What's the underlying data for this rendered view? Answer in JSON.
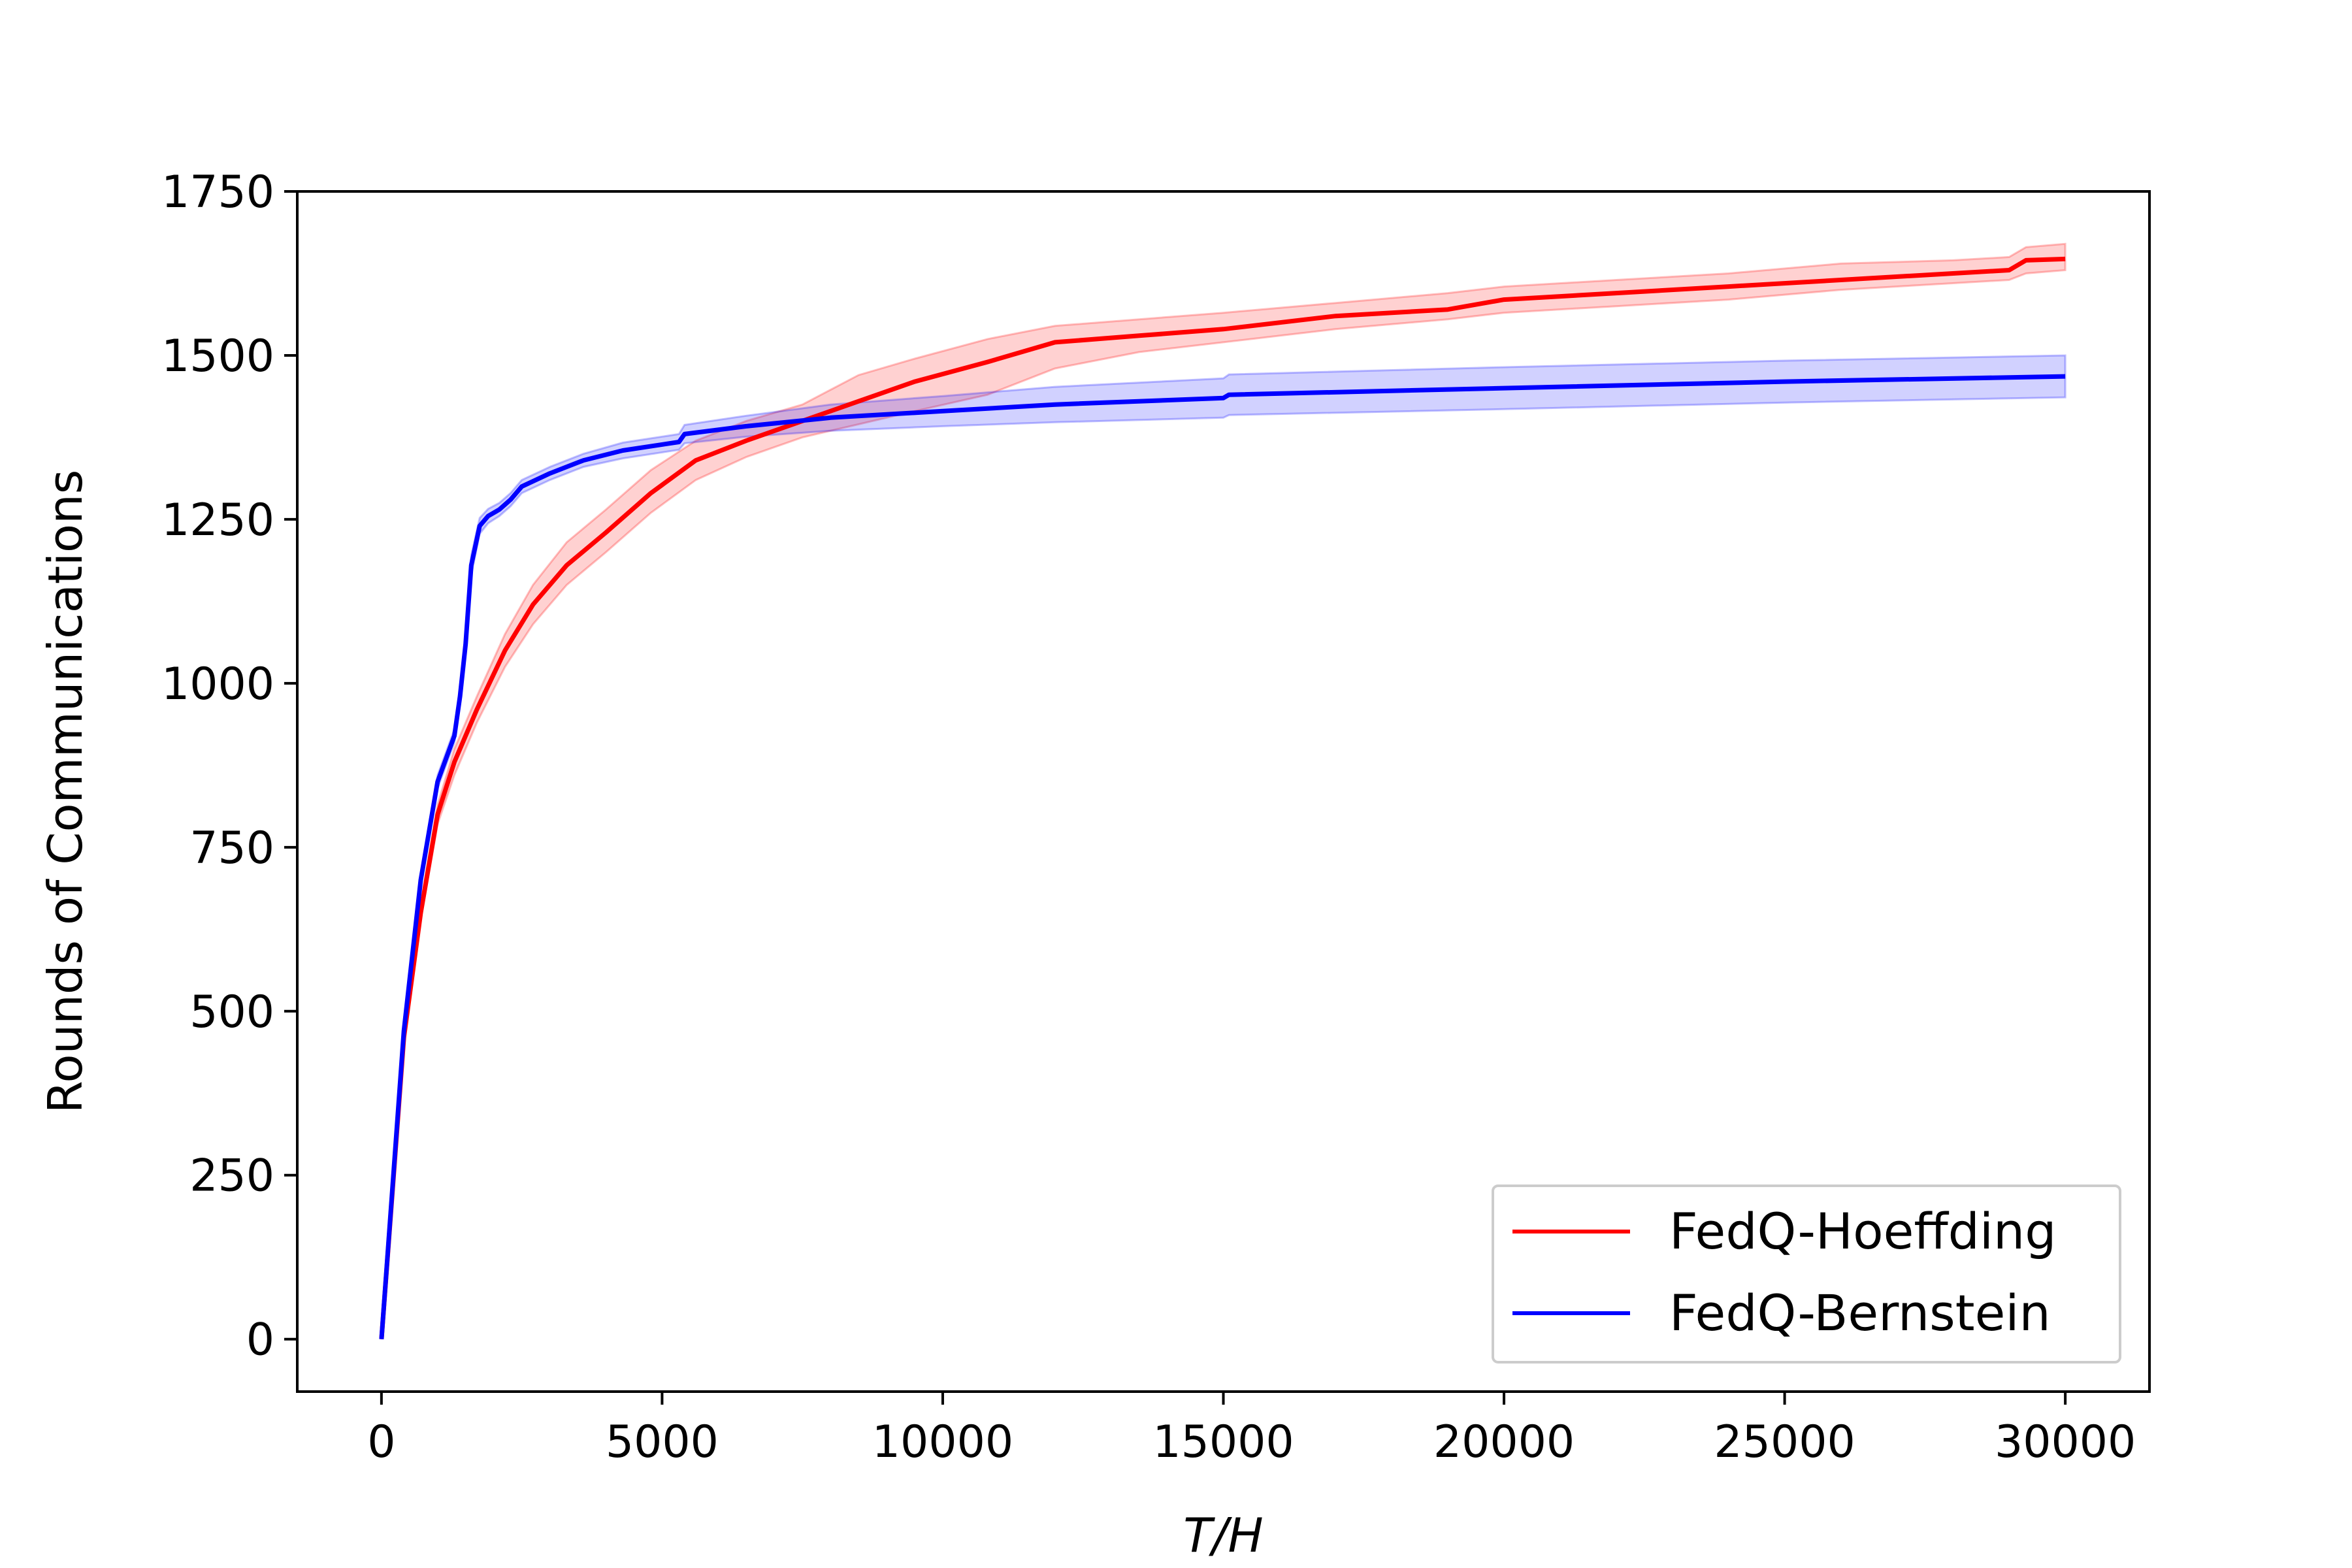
{
  "chart_data": {
    "type": "line",
    "title": "",
    "xlabel": "T/H",
    "ylabel": "Rounds of Communications",
    "xlim": [
      -1500,
      31500
    ],
    "ylim": [
      -80,
      1750
    ],
    "x_ticks": [
      0,
      5000,
      10000,
      15000,
      20000,
      25000,
      30000
    ],
    "y_ticks": [
      0,
      250,
      500,
      750,
      1000,
      1250,
      1500,
      1750
    ],
    "grid": false,
    "legend_position": "lower-right",
    "series": [
      {
        "name": "FedQ-Hoeffding",
        "color": "#ff0000",
        "band_color": "#ff0000",
        "x": [
          0,
          400,
          700,
          1000,
          1300,
          1700,
          2200,
          2700,
          3300,
          4000,
          4800,
          5600,
          6500,
          7500,
          8500,
          9500,
          10800,
          12000,
          13500,
          15000,
          17000,
          19000,
          20000,
          22000,
          24000,
          26000,
          28000,
          29000,
          29300,
          30000
        ],
        "y": [
          0,
          460,
          650,
          800,
          880,
          960,
          1050,
          1120,
          1180,
          1230,
          1290,
          1340,
          1370,
          1400,
          1430,
          1460,
          1490,
          1520,
          1530,
          1540,
          1560,
          1570,
          1585,
          1595,
          1605,
          1615,
          1625,
          1630,
          1645,
          1647
        ],
        "lower": [
          0,
          450,
          640,
          785,
          860,
          940,
          1025,
          1090,
          1150,
          1200,
          1260,
          1310,
          1345,
          1375,
          1395,
          1415,
          1440,
          1480,
          1505,
          1520,
          1540,
          1555,
          1565,
          1575,
          1585,
          1600,
          1610,
          1615,
          1625,
          1630
        ],
        "upper": [
          0,
          470,
          665,
          815,
          900,
          980,
          1075,
          1150,
          1215,
          1265,
          1325,
          1370,
          1400,
          1425,
          1470,
          1495,
          1525,
          1545,
          1555,
          1565,
          1580,
          1595,
          1605,
          1615,
          1625,
          1640,
          1645,
          1650,
          1665,
          1670
        ]
      },
      {
        "name": "FedQ-Bernstein",
        "color": "#0000ff",
        "band_color": "#0000ff",
        "x": [
          0,
          400,
          700,
          1000,
          1300,
          1400,
          1500,
          1600,
          1750,
          1900,
          2100,
          2300,
          2500,
          3000,
          3600,
          4300,
          5300,
          5400,
          6500,
          8000,
          10000,
          12000,
          15000,
          15100,
          20000,
          25000,
          30000
        ],
        "y": [
          0,
          470,
          700,
          850,
          920,
          980,
          1060,
          1180,
          1240,
          1255,
          1265,
          1280,
          1300,
          1320,
          1340,
          1355,
          1368,
          1380,
          1392,
          1405,
          1415,
          1425,
          1435,
          1440,
          1450,
          1460,
          1468
        ],
        "lower": [
          0,
          462,
          690,
          840,
          910,
          970,
          1045,
          1165,
          1228,
          1244,
          1255,
          1270,
          1290,
          1310,
          1330,
          1343,
          1356,
          1366,
          1376,
          1385,
          1392,
          1398,
          1405,
          1409,
          1418,
          1428,
          1436
        ],
        "upper": [
          0,
          478,
          710,
          860,
          930,
          990,
          1075,
          1195,
          1252,
          1266,
          1275,
          1290,
          1310,
          1330,
          1350,
          1367,
          1380,
          1394,
          1408,
          1425,
          1438,
          1452,
          1465,
          1471,
          1482,
          1492,
          1500
        ]
      }
    ]
  }
}
